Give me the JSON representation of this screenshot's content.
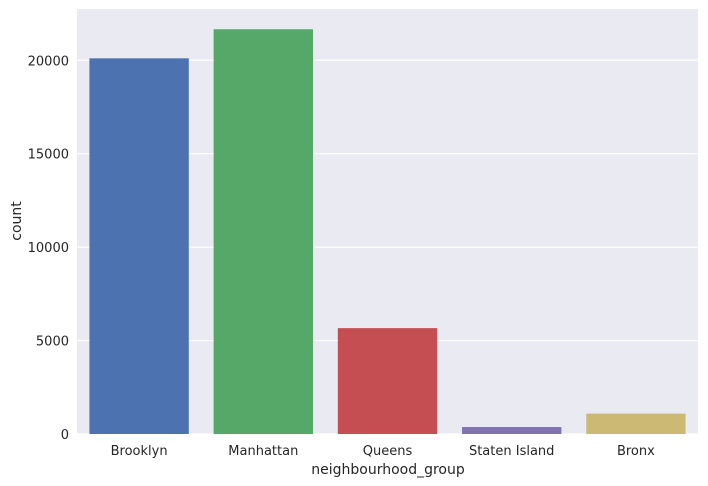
{
  "chart_data": {
    "type": "bar",
    "title": "",
    "xlabel": "neighbourhood_group",
    "ylabel": "count",
    "categories": [
      "Brooklyn",
      "Manhattan",
      "Queens",
      "Staten Island",
      "Bronx"
    ],
    "values": [
      20104,
      21661,
      5666,
      373,
      1091
    ],
    "colors": [
      "#4c72b0",
      "#55a868",
      "#c44e52",
      "#8172b2",
      "#ccb974"
    ],
    "ylim": [
      0,
      22744
    ],
    "yticks": [
      0,
      5000,
      10000,
      15000,
      20000
    ],
    "ytick_labels": [
      "0",
      "5000",
      "10000",
      "15000",
      "20000"
    ],
    "grid": true,
    "background": "#eaeaf2",
    "gridColor": "#ffffff"
  }
}
